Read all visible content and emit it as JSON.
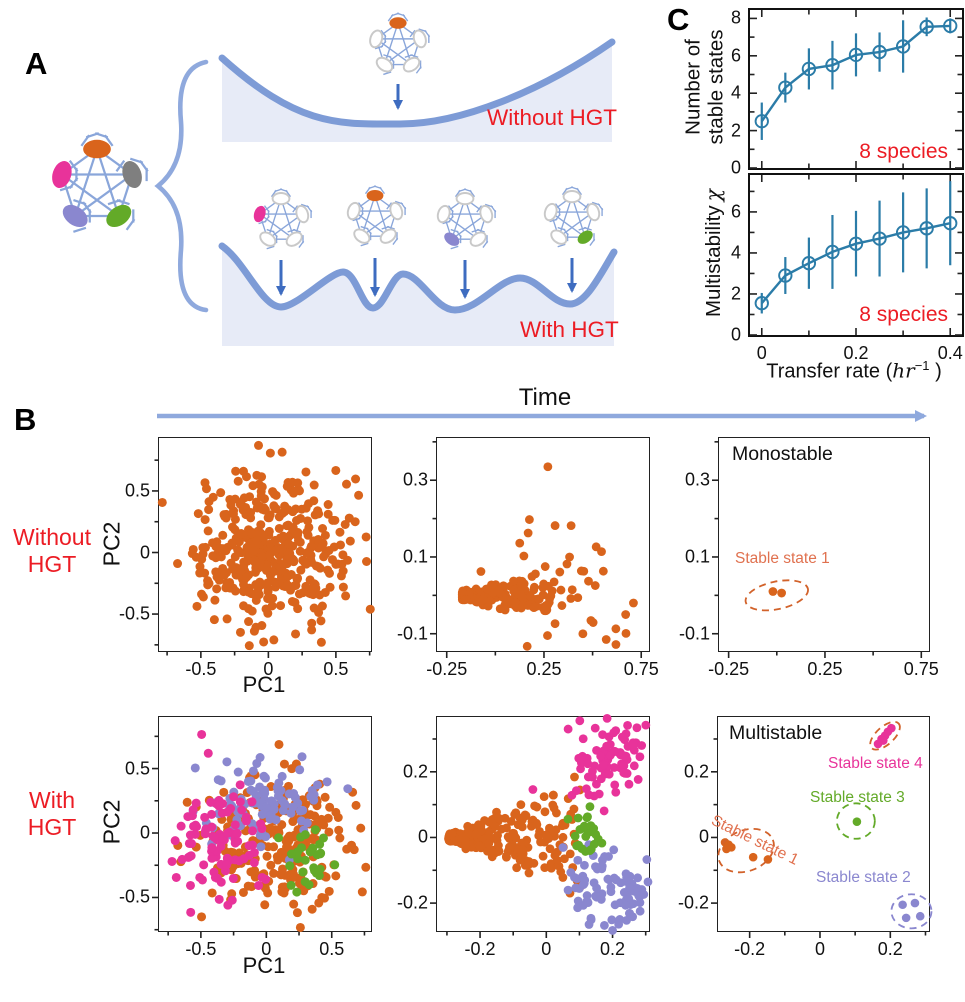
{
  "panel_a": {
    "label": "A",
    "without_hgt": "Without HGT",
    "with_hgt": "With HGT"
  },
  "panel_b": {
    "label": "B",
    "time_label": "Time",
    "row1_label_line1": "Without",
    "row1_label_line2": "HGT",
    "row2_label_line1": "With",
    "row2_label_line2": "HGT",
    "pc1": "PC1",
    "pc2": "PC2",
    "monostable": "Monostable",
    "multistable": "Multistable",
    "stable_state_1": "Stable state 1",
    "stable_state_2": "Stable state 2",
    "stable_state_3": "Stable state 3",
    "stable_state_4": "Stable state 4"
  },
  "panel_c": {
    "label": "C",
    "ylabel_top_line1": "Number of",
    "ylabel_top_line2": "stable states",
    "ylabel_bottom": "Multistability",
    "chi": "χ",
    "species_note": "8 species",
    "xlabel_prefix": "Transfer rate (",
    "xlabel_var": "hr",
    "xlabel_sup": "−1",
    "xlabel_suffix": " )"
  },
  "palette": {
    "red": "#ec1c24",
    "orange": "#d9641c",
    "pink": "#e8339a",
    "purple": "#8a87cf",
    "green": "#63aa28",
    "gray": "#7f7f7f",
    "blue": "#2b7ca8",
    "salmon": "#e0714f",
    "dash_orange": "#d2622a",
    "landscape_blue": "#7d9bd6",
    "landscape_fill": "#e7ebf7",
    "arrow_blue": "#3e6cc0",
    "network_edge": "#8aa6da",
    "time_arrow": "#8fa9dd"
  },
  "chart_data": [
    {
      "id": "c_top",
      "type": "line",
      "title": "",
      "ylabel": "Number of stable states",
      "x": [
        0,
        0.05,
        0.1,
        0.15,
        0.2,
        0.25,
        0.3,
        0.35,
        0.4
      ],
      "y": [
        2.5,
        4.3,
        5.3,
        5.5,
        6.05,
        6.2,
        6.5,
        7.55,
        7.6
      ],
      "yerr": [
        1.0,
        0.8,
        1.1,
        1.3,
        1.15,
        1.05,
        1.4,
        0.5,
        0.4
      ],
      "xlim": [
        -0.025,
        0.425
      ],
      "ylim": [
        0,
        8.45
      ],
      "xticks": [
        0,
        0.2,
        0.4
      ],
      "xtick_labels": false,
      "yticks": [
        0,
        2,
        4,
        6,
        8
      ],
      "tick_style": "in",
      "color": "blue",
      "annotation": "8 species"
    },
    {
      "id": "c_bottom",
      "type": "line",
      "title": "",
      "ylabel": "Multistability χ",
      "xlabel": "Transfer rate (hr−1)",
      "x": [
        0,
        0.05,
        0.1,
        0.15,
        0.2,
        0.25,
        0.3,
        0.35,
        0.4
      ],
      "y": [
        1.55,
        2.9,
        3.5,
        4.05,
        4.45,
        4.7,
        5.0,
        5.2,
        5.45
      ],
      "yerr": [
        0.5,
        0.9,
        1.25,
        1.8,
        1.6,
        1.85,
        1.95,
        1.95,
        2.05
      ],
      "xlim": [
        -0.025,
        0.425
      ],
      "ylim": [
        0,
        7.8
      ],
      "xticks": [
        0,
        0.2,
        0.4
      ],
      "xtick_labels": true,
      "yticks": [
        0,
        2,
        4,
        6
      ],
      "tick_style": "in",
      "color": "blue",
      "annotation": "8 species"
    },
    {
      "id": "b_r1c1",
      "type": "scatter",
      "xlabel": "PC1",
      "ylabel": "PC2",
      "xlim": [
        -0.81,
        0.76
      ],
      "ylim": [
        -0.8,
        0.93
      ],
      "xticks": [
        -0.5,
        0,
        0.5
      ],
      "yticks": [
        -0.5,
        0,
        0.5
      ],
      "tick_style": "out",
      "dot_r": 4.5,
      "clusters": [
        {
          "color": "orange",
          "n": 430,
          "cx": 0.0,
          "cy": 0.02,
          "sx": 0.3,
          "sy": 0.3,
          "seed": 7
        }
      ]
    },
    {
      "id": "b_r1c2",
      "type": "scatter",
      "xlim": [
        -0.3,
        0.79
      ],
      "ylim": [
        -0.145,
        0.41
      ],
      "xticks": [
        -0.25,
        0.25,
        0.75
      ],
      "yticks": [
        -0.1,
        0.1,
        0.3
      ],
      "tick_style": "out",
      "dot_r": 4.4,
      "clusters": [
        {
          "type": "wedge",
          "color": "orange",
          "n": 215,
          "x0": -0.17,
          "y0": 0.0,
          "len": 0.45,
          "halfwidth": 0.06,
          "power": 1.9,
          "noise": 0.012,
          "seed": 31
        },
        {
          "color": "orange",
          "n": 40,
          "cx": 0.33,
          "cy": 0.05,
          "sx": 0.19,
          "sy": 0.1,
          "seed": 32
        }
      ],
      "points": [
        [
          0.27,
          0.335,
          "orange"
        ],
        [
          0.57,
          -0.115,
          "orange"
        ],
        [
          0.62,
          -0.128,
          "orange"
        ],
        [
          0.67,
          -0.05,
          "orange"
        ],
        [
          0.71,
          -0.02,
          "orange"
        ],
        [
          0.45,
          -0.1,
          "orange"
        ]
      ]
    },
    {
      "id": "b_r1c3",
      "type": "scatter",
      "xlim": [
        -0.3,
        0.79
      ],
      "ylim": [
        -0.145,
        0.41
      ],
      "xticks": [
        -0.25,
        0.25,
        0.75
      ],
      "yticks": [
        -0.1,
        0.1,
        0.3
      ],
      "tick_style": "out",
      "dot_r": 4.4,
      "points": [
        [
          -0.02,
          0.01,
          "orange"
        ],
        [
          0.025,
          0.006,
          "orange"
        ]
      ],
      "ellipses": [
        {
          "cx": 0.0,
          "cy": 0.0,
          "rx": 0.165,
          "ry": 0.036,
          "rot": -12,
          "color": "dash_orange"
        }
      ]
    },
    {
      "id": "b_r2c1",
      "type": "scatter",
      "xlabel": "PC1",
      "ylabel": "PC2",
      "xlim": [
        -0.82,
        0.8
      ],
      "ylim": [
        -0.76,
        0.9
      ],
      "xticks": [
        -0.5,
        0,
        0.5
      ],
      "yticks": [
        -0.5,
        0,
        0.5
      ],
      "tick_style": "out",
      "dot_r": 4.5,
      "clusters": [
        {
          "color": "orange",
          "n": 240,
          "cx": 0.1,
          "cy": -0.06,
          "sx": 0.29,
          "sy": 0.29,
          "seed": 21
        },
        {
          "color": "purple",
          "n": 95,
          "cx": -0.06,
          "cy": 0.27,
          "sx": 0.25,
          "sy": 0.19,
          "seed": 22
        },
        {
          "color": "pink",
          "n": 95,
          "cx": -0.37,
          "cy": -0.07,
          "sx": 0.18,
          "sy": 0.26,
          "seed": 23
        },
        {
          "color": "green",
          "n": 30,
          "cx": 0.32,
          "cy": -0.18,
          "sx": 0.1,
          "sy": 0.13,
          "seed": 24
        }
      ]
    },
    {
      "id": "b_r2c2",
      "type": "scatter",
      "xlim": [
        -0.33,
        0.31
      ],
      "ylim": [
        -0.285,
        0.367
      ],
      "xticks": [
        -0.2,
        0,
        0.2
      ],
      "yticks": [
        -0.2,
        0,
        0.2
      ],
      "tick_style": "out",
      "dot_r": 4.4,
      "clusters": [
        {
          "type": "wedge",
          "color": "orange",
          "n": 235,
          "x0": -0.295,
          "y0": 0.0,
          "len": 0.4,
          "halfwidth": 0.19,
          "power": 1.6,
          "noise": 0.012,
          "seed": 41
        },
        {
          "color": "pink",
          "n": 55,
          "cx": 0.21,
          "cy": 0.27,
          "sx": 0.05,
          "sy": 0.055,
          "seed": 42
        },
        {
          "color": "pink",
          "n": 28,
          "cx": 0.14,
          "cy": 0.17,
          "sx": 0.05,
          "sy": 0.05,
          "seed": 43
        },
        {
          "color": "purple",
          "n": 60,
          "cx": 0.22,
          "cy": -0.19,
          "sx": 0.06,
          "sy": 0.065,
          "seed": 44
        },
        {
          "color": "purple",
          "n": 28,
          "cx": 0.14,
          "cy": -0.12,
          "sx": 0.05,
          "sy": 0.05,
          "seed": 45
        },
        {
          "color": "green",
          "n": 24,
          "cx": 0.125,
          "cy": 0.005,
          "sx": 0.022,
          "sy": 0.04,
          "seed": 46
        }
      ]
    },
    {
      "id": "b_r2c3",
      "type": "scatter",
      "xlim": [
        -0.29,
        0.31
      ],
      "ylim": [
        -0.285,
        0.367
      ],
      "xticks": [
        -0.2,
        0,
        0.2
      ],
      "yticks": [
        -0.2,
        0,
        0.2
      ],
      "tick_style": "out",
      "dot_r": 4.3,
      "points": [
        [
          -0.27,
          -0.015,
          "orange"
        ],
        [
          -0.26,
          -0.022,
          "orange"
        ],
        [
          -0.252,
          -0.03,
          "orange"
        ],
        [
          -0.266,
          -0.035,
          "orange"
        ],
        [
          -0.19,
          -0.06,
          "orange"
        ],
        [
          -0.148,
          -0.067,
          "orange"
        ],
        [
          0.165,
          0.285,
          "pink"
        ],
        [
          0.175,
          0.3,
          "pink"
        ],
        [
          0.185,
          0.31,
          "pink"
        ],
        [
          0.193,
          0.322,
          "pink"
        ],
        [
          0.203,
          0.333,
          "pink"
        ],
        [
          0.18,
          0.295,
          "pink"
        ],
        [
          0.105,
          0.048,
          "green"
        ],
        [
          0.235,
          -0.205,
          "purple"
        ],
        [
          0.27,
          -0.2,
          "purple"
        ],
        [
          0.245,
          -0.245,
          "purple"
        ],
        [
          0.285,
          -0.24,
          "purple"
        ]
      ],
      "ellipses": [
        {
          "cx": -0.21,
          "cy": -0.04,
          "rx": 0.082,
          "ry": 0.062,
          "rot": -22,
          "color": "dash_orange"
        },
        {
          "cx": 0.185,
          "cy": 0.31,
          "rx": 0.052,
          "ry": 0.027,
          "rot": -42,
          "color": "dash_orange"
        },
        {
          "cx": 0.102,
          "cy": 0.05,
          "rx": 0.054,
          "ry": 0.054,
          "rot": 0,
          "color": "green"
        },
        {
          "cx": 0.26,
          "cy": -0.225,
          "rx": 0.057,
          "ry": 0.052,
          "rot": 0,
          "color": "purple"
        }
      ]
    }
  ]
}
